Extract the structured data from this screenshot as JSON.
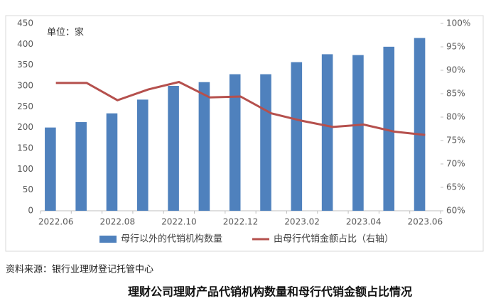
{
  "chart_data": {
    "type": "bar_line",
    "annotation": "单位：家",
    "categories": [
      "2022.06",
      null,
      "2022.08",
      null,
      "2022.10",
      null,
      "2022.12",
      null,
      "2023.02",
      null,
      "2023.04",
      null,
      "2023.06"
    ],
    "series": [
      {
        "name": "母行以外的代销机构数量",
        "color": "#4f81bd",
        "type": "bar",
        "values": [
          200,
          213,
          234,
          267,
          300,
          309,
          328,
          328,
          357,
          376,
          374,
          394,
          415
        ]
      },
      {
        "name": "由母行代销金额占比（右轴）",
        "color": "#b5504d",
        "type": "line",
        "axis": "y2",
        "values": [
          87.3,
          87.3,
          83.6,
          85.9,
          87.5,
          84.2,
          84.4,
          80.8,
          79.2,
          77.9,
          78.4,
          76.9,
          76.2
        ]
      }
    ],
    "ylim": [
      0,
      450
    ],
    "yticks": [
      0,
      50,
      100,
      150,
      200,
      250,
      300,
      350,
      400,
      450
    ],
    "y2lim": [
      60,
      100
    ],
    "y2ticks": [
      {
        "value": 60,
        "label": "60%"
      },
      {
        "value": 65,
        "label": "65%"
      },
      {
        "value": 70,
        "label": "70%"
      },
      {
        "value": 75,
        "label": "75%"
      },
      {
        "value": 80,
        "label": "80%"
      },
      {
        "value": 85,
        "label": "85%"
      },
      {
        "value": 90,
        "label": "90%"
      },
      {
        "value": 95,
        "label": "95%"
      },
      {
        "value": 100,
        "label": "100%"
      }
    ],
    "legend": "bottom",
    "source": "资料来源：银行业理财登记托管中心",
    "caption": "理财公司理财产品代销机构数量和母行代销金额占比情况"
  }
}
